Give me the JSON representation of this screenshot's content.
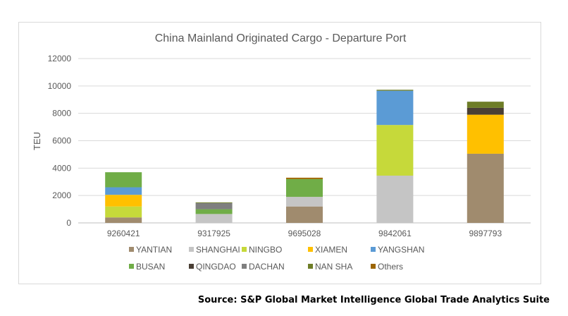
{
  "chart_data": {
    "type": "bar",
    "stacked": true,
    "title": "China Mainland Originated Cargo - Departure Port",
    "xlabel": "",
    "ylabel": "TEU",
    "ylim": [
      0,
      12000
    ],
    "yticks": [
      "0",
      "2000",
      "4000",
      "6000",
      "8000",
      "10000",
      "12000"
    ],
    "categories": [
      "9260421",
      "9317925",
      "9695028",
      "9842061",
      "9897793"
    ],
    "grid": true,
    "legend_position": "bottom",
    "series": [
      {
        "name": "YANTIAN",
        "color": "#a08b6e",
        "values": [
          400,
          0,
          1200,
          0,
          5050
        ]
      },
      {
        "name": "SHANGHAI",
        "color": "#c5c5c5",
        "values": [
          0,
          650,
          700,
          3450,
          0
        ]
      },
      {
        "name": "NINGBO",
        "color": "#c6d93a",
        "values": [
          800,
          0,
          0,
          3700,
          0
        ]
      },
      {
        "name": "XIAMEN",
        "color": "#ffc000",
        "values": [
          850,
          0,
          0,
          0,
          2850
        ]
      },
      {
        "name": "YANGSHAN",
        "color": "#5b9bd5",
        "values": [
          550,
          0,
          0,
          2500,
          0
        ]
      },
      {
        "name": "BUSAN",
        "color": "#70ad47",
        "values": [
          1100,
          350,
          1300,
          0,
          0
        ]
      },
      {
        "name": "QINGDAO",
        "color": "#4a3f35",
        "values": [
          0,
          0,
          0,
          0,
          500
        ]
      },
      {
        "name": "DACHAN",
        "color": "#7f7f7f",
        "values": [
          0,
          450,
          0,
          0,
          0
        ]
      },
      {
        "name": "NAN SHA",
        "color": "#6e7d27",
        "values": [
          0,
          50,
          0,
          70,
          450
        ]
      },
      {
        "name": "Others",
        "color": "#9c6500",
        "values": [
          0,
          0,
          100,
          0,
          0
        ]
      }
    ]
  },
  "source": "Source: S&P Global Market Intelligence Global Trade Analytics Suite"
}
